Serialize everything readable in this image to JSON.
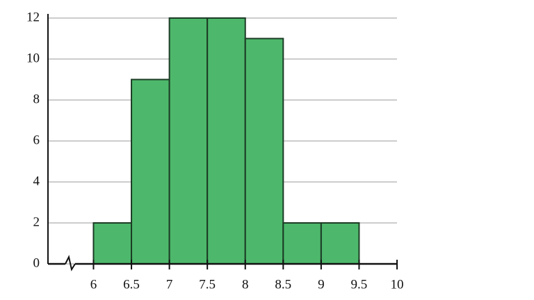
{
  "chart_data": {
    "type": "histogram",
    "bins": [
      6,
      6.5,
      7,
      7.5,
      8,
      8.5,
      9,
      9.5
    ],
    "values": [
      2,
      9,
      12,
      12,
      11,
      2,
      2
    ],
    "color": "#4db86b",
    "edge_color": "#1c3b25",
    "xlim": [
      5.4,
      10
    ],
    "xticks": [
      6,
      6.5,
      7,
      7.5,
      8,
      8.5,
      9,
      9.5,
      10
    ],
    "ylim": [
      0,
      12
    ],
    "yticks": [
      0,
      2,
      4,
      6,
      8,
      10,
      12
    ],
    "grid": true
  }
}
